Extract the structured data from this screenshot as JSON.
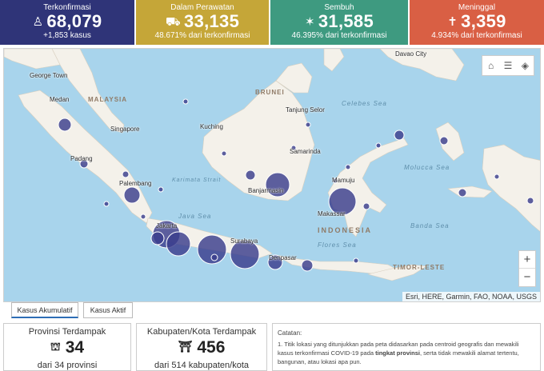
{
  "stats": [
    {
      "label": "Terkonfirmasi",
      "value": "68,079",
      "sub": "+1,853 kasus",
      "color": "#2f3478",
      "icon": "person-icon"
    },
    {
      "label": "Dalam Perawatan",
      "value": "33,135",
      "sub": "48.671% dari terkonfirmasi",
      "color": "#c5a638",
      "icon": "hospital-bed-icon"
    },
    {
      "label": "Sembuh",
      "value": "31,585",
      "sub": "46.395% dari terkonfirmasi",
      "color": "#3e9a80",
      "icon": "recovered-person-icon"
    },
    {
      "label": "Meninggal",
      "value": "3,359",
      "sub": "4.934% dari terkonfirmasi",
      "color": "#d95f44",
      "icon": "deceased-icon"
    }
  ],
  "map": {
    "labels": {
      "george_town": "George Town",
      "malaysia": "MALAYSIA",
      "medan": "Medan",
      "singapore": "Singapore",
      "padang": "Padang",
      "palembang": "Palembang",
      "brunei": "BRUNEI",
      "tanjung_selor": "Tanjung Selor",
      "kuching": "Kuching",
      "samarinda": "Samarinda",
      "banjarmasin": "Banjarmasin",
      "mamuju": "Mamuju",
      "makassar": "Makassar",
      "jakarta": "Jakarta",
      "surabaya": "Surabaya",
      "denpasar": "Denpasar",
      "davao_city": "Davao City",
      "timor_leste": "TIMOR-LESTE",
      "indonesia": "INDONESIA",
      "celebes_sea": "Celebes Sea",
      "molucca_sea": "Molucca Sea",
      "java_sea": "Java Sea",
      "flores_sea": "Flores Sea",
      "banda_sea": "Banda Sea",
      "karimata_strait": "Karimata Strait"
    },
    "attribution": "Esri, HERE, Garmin, FAO, NOAA, USGS",
    "zoom_in": "+",
    "zoom_out": "−"
  },
  "tabs": [
    {
      "label": "Kasus Akumulatif",
      "active": true
    },
    {
      "label": "Kasus Aktif",
      "active": false
    }
  ],
  "cards": [
    {
      "title": "Provinsi Terdampak",
      "value": "34",
      "sub": "dari 34 provinsi",
      "icon": "government-building-icon"
    },
    {
      "title": "Kabupaten/Kota Terdampak",
      "value": "456",
      "sub": "dari 514 kabupaten/kota",
      "icon": "city-hall-icon"
    }
  ],
  "notes": {
    "title": "Catatan:",
    "text_before": "1. Titik lokasi yang ditunjukkan pada peta didasarkan pada centroid geografis dan mewakili kasus terkonfirmasi COVID-19 pada ",
    "text_bold": "tingkat provinsi",
    "text_after": ", serta tidak mewakili alamat tertentu, bangunan, atau lokasi apa pun."
  },
  "colors": {
    "bubble": "#3a3d8c",
    "sea": "#a8d4ec",
    "land": "#f4f1ea",
    "tab_active": "#2d6db5"
  }
}
